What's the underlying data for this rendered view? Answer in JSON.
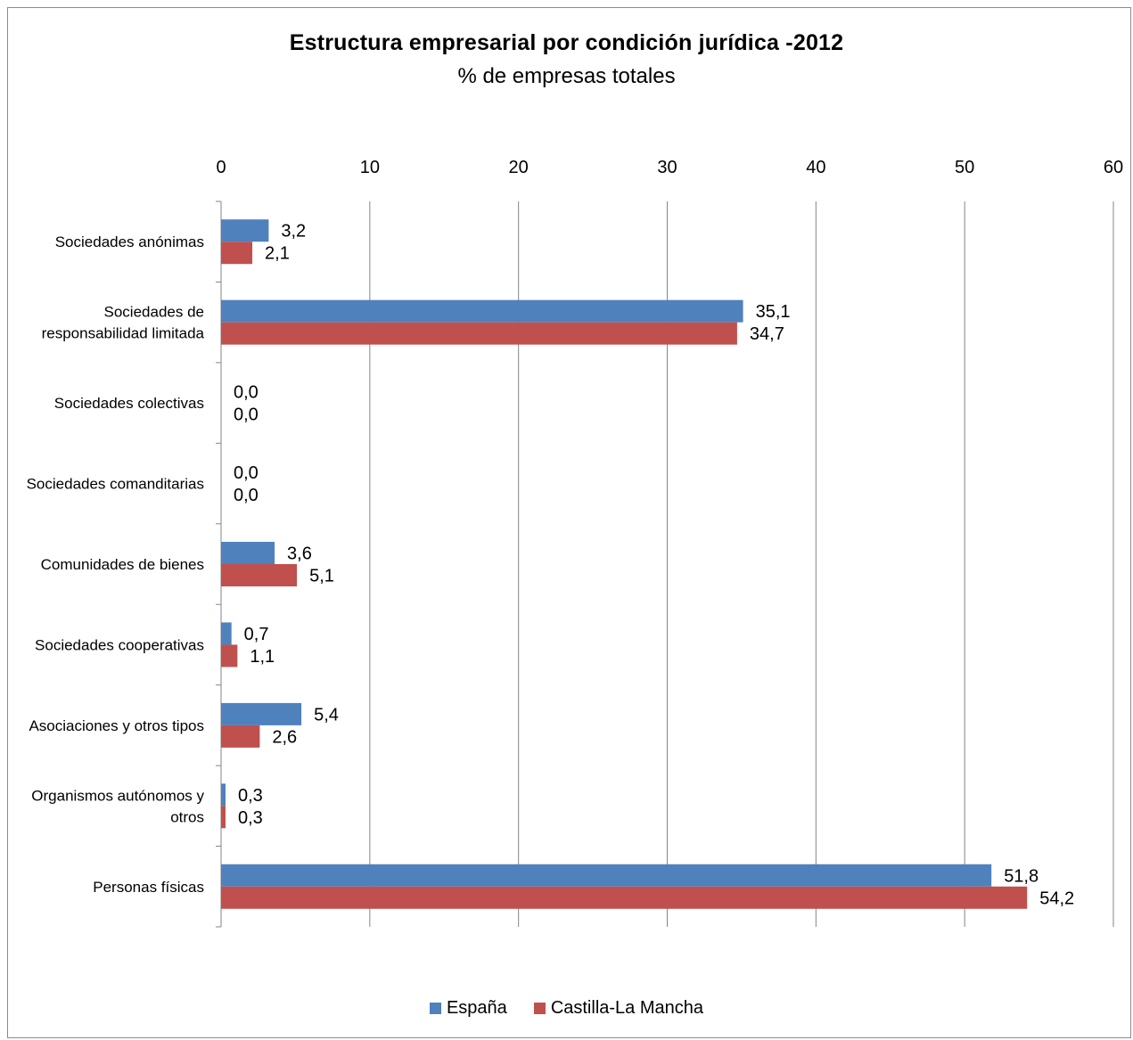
{
  "colors": {
    "espana": "#4f81bd",
    "clm": "#c0504d",
    "grid": "#868686"
  },
  "chart_data": {
    "type": "bar",
    "orientation": "horizontal",
    "title": "Estructura empresarial por condición jurídica -2012",
    "subtitle": "% de empresas totales",
    "xlim": [
      0,
      60
    ],
    "x_ticks": [
      "0",
      "10",
      "20",
      "30",
      "40",
      "50",
      "60"
    ],
    "grid": true,
    "legend_position": "bottom",
    "categories": [
      [
        "Sociedades anónimas"
      ],
      [
        "Sociedades de",
        "responsabilidad limitada"
      ],
      [
        "Sociedades colectivas"
      ],
      [
        "Sociedades comanditarias"
      ],
      [
        "Comunidades de bienes"
      ],
      [
        "Sociedades cooperativas"
      ],
      [
        "Asociaciones y otros tipos"
      ],
      [
        "Organismos autónomos y",
        "otros"
      ],
      [
        "Personas físicas"
      ]
    ],
    "series": [
      {
        "name": "España",
        "values": [
          3.2,
          35.1,
          0.0,
          0.0,
          3.6,
          0.7,
          5.4,
          0.3,
          51.8
        ],
        "labels": [
          "3,2",
          "35,1",
          "0,0",
          "0,0",
          "3,6",
          "0,7",
          "5,4",
          "0,3",
          "51,8"
        ]
      },
      {
        "name": "Castilla-La Mancha",
        "values": [
          2.1,
          34.7,
          0.0,
          0.0,
          5.1,
          1.1,
          2.6,
          0.3,
          54.2
        ],
        "labels": [
          "2,1",
          "34,7",
          "0,0",
          "0,0",
          "5,1",
          "1,1",
          "2,6",
          "0,3",
          "54,2"
        ]
      }
    ]
  }
}
